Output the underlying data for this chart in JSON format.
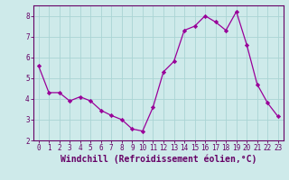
{
  "x": [
    0,
    1,
    2,
    3,
    4,
    5,
    6,
    7,
    8,
    9,
    10,
    11,
    12,
    13,
    14,
    15,
    16,
    17,
    18,
    19,
    20,
    21,
    22,
    23
  ],
  "y": [
    5.6,
    4.3,
    4.3,
    3.9,
    4.1,
    3.9,
    3.45,
    3.2,
    3.0,
    2.55,
    2.45,
    3.6,
    5.3,
    5.8,
    7.3,
    7.5,
    8.0,
    7.7,
    7.3,
    8.2,
    6.6,
    4.7,
    3.8,
    3.15
  ],
  "line_color": "#990099",
  "marker": "D",
  "marker_size": 2.2,
  "bg_color": "#ceeaea",
  "grid_color": "#aad4d4",
  "axes_color": "#660066",
  "xlabel": "Windchill (Refroidissement éolien,°C)",
  "xlabel_color": "#660066",
  "ylim": [
    2,
    8.5
  ],
  "xlim": [
    -0.5,
    23.5
  ],
  "yticks": [
    2,
    3,
    4,
    5,
    6,
    7,
    8
  ],
  "xticks": [
    0,
    1,
    2,
    3,
    4,
    5,
    6,
    7,
    8,
    9,
    10,
    11,
    12,
    13,
    14,
    15,
    16,
    17,
    18,
    19,
    20,
    21,
    22,
    23
  ],
  "tick_fontsize": 5.5,
  "xlabel_fontsize": 7.0
}
